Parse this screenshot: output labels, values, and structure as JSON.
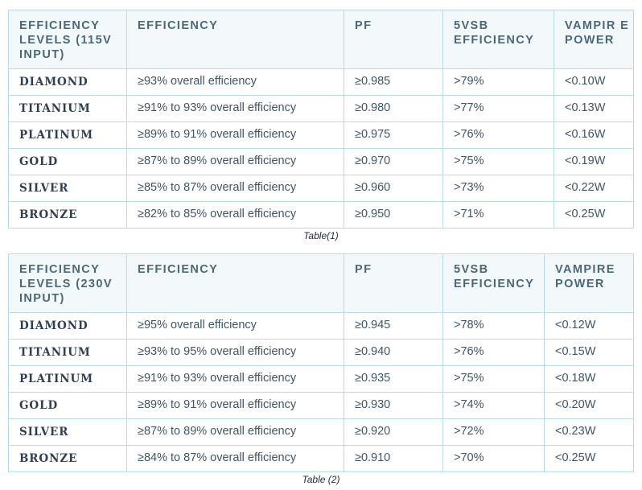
{
  "table1": {
    "headers": [
      "EFFICIENCY LEVELS (115V INPUT)",
      "EFFICIENCY",
      "PF",
      "5VSB EFFICIENCY",
      "VAMPIR E POWER"
    ],
    "rows": [
      [
        "DIAMOND",
        "≥93% overall efficiency",
        "≥0.985",
        ">79%",
        "<0.10W"
      ],
      [
        "TITANIUM",
        "≥91% to 93% overall efficiency",
        "≥0.980",
        ">77%",
        "<0.13W"
      ],
      [
        "PLATINUM",
        "≥89% to 91% overall efficiency",
        "≥0.975",
        ">76%",
        "<0.16W"
      ],
      [
        "GOLD",
        "≥87% to 89% overall efficiency",
        "≥0.970",
        ">75%",
        "<0.19W"
      ],
      [
        "SILVER",
        "≥85% to 87% overall efficiency",
        "≥0.960",
        ">73%",
        "<0.22W"
      ],
      [
        "BRONZE",
        "≥82% to 85% overall efficiency",
        "≥0.950",
        ">71%",
        "<0.25W"
      ]
    ],
    "caption": "Table(1)"
  },
  "table2": {
    "headers": [
      "EFFICIENCY LEVELS (230V INPUT)",
      "EFFICIENCY",
      "PF",
      "5VSB EFFICIENCY",
      "VAMPIRE POWER"
    ],
    "rows": [
      [
        "DIAMOND",
        "≥95% overall efficiency",
        "≥0.945",
        ">78%",
        "<0.12W"
      ],
      [
        "TITANIUM",
        "≥93% to 95% overall efficiency",
        "≥0.940",
        ">76%",
        "<0.15W"
      ],
      [
        "PLATINUM",
        "≥91% to 93% overall efficiency",
        "≥0.935",
        ">75%",
        "<0.18W"
      ],
      [
        "GOLD",
        "≥89% to 91% overall efficiency",
        "≥0.930",
        ">74%",
        "<0.20W"
      ],
      [
        "SILVER",
        "≥87% to 89% overall efficiency",
        "≥0.920",
        ">72%",
        "<0.23W"
      ],
      [
        "BRONZE",
        "≥84% to 87% overall efficiency",
        "≥0.910",
        ">70%",
        "<0.25W"
      ]
    ],
    "caption": "Table (2)"
  },
  "colors": {
    "border": "#b8dce6",
    "header_bg": "#f3f8fa",
    "text": "#3e5566"
  }
}
